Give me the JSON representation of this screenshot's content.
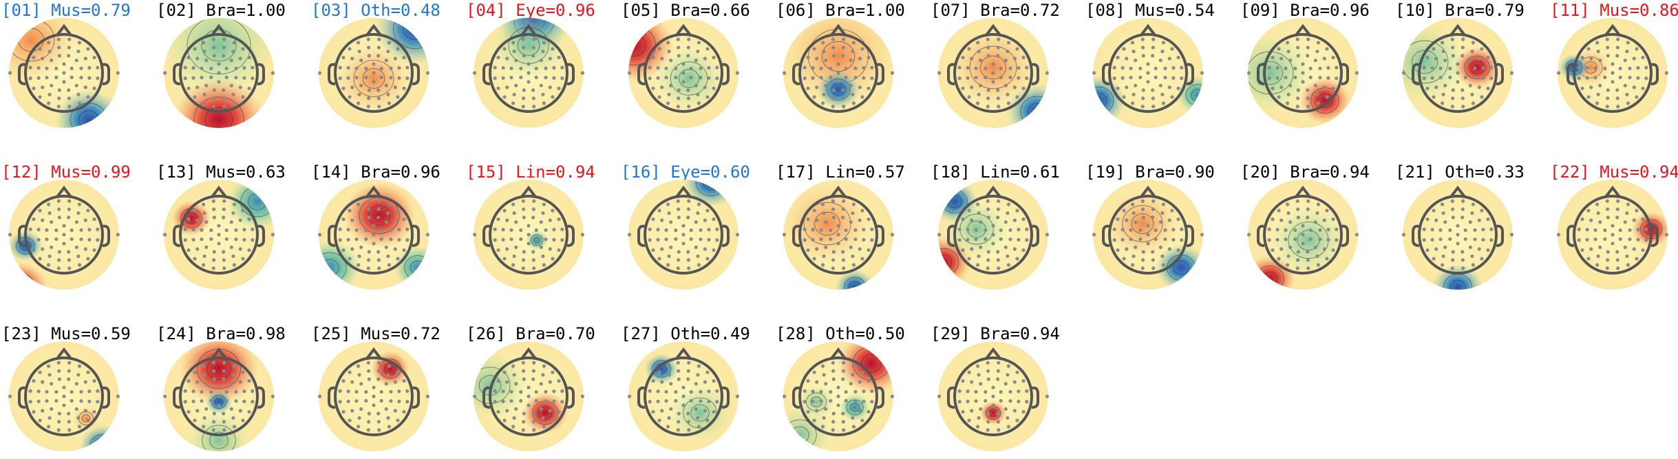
{
  "components": [
    {
      "title": "[01] Mus=0.79",
      "color": "#1f77d4"
    },
    {
      "title": "[02] Bra=1.00",
      "color": "#000000"
    },
    {
      "title": "[03] Oth=0.48",
      "color": "#1f77d4"
    },
    {
      "title": "[04] Eye=0.96",
      "color": "#e8141c"
    },
    {
      "title": "[05] Bra=0.66",
      "color": "#000000"
    },
    {
      "title": "[06] Bra=1.00",
      "color": "#000000"
    },
    {
      "title": "[07] Bra=0.72",
      "color": "#000000"
    },
    {
      "title": "[08] Mus=0.54",
      "color": "#000000"
    },
    {
      "title": "[09] Bra=0.96",
      "color": "#000000"
    },
    {
      "title": "[10] Bra=0.79",
      "color": "#000000"
    },
    {
      "title": "[11] Mus=0.86",
      "color": "#e8141c"
    },
    {
      "title": "[12] Mus=0.99",
      "color": "#e8141c"
    },
    {
      "title": "[13] Mus=0.63",
      "color": "#000000"
    },
    {
      "title": "[14] Bra=0.96",
      "color": "#000000"
    },
    {
      "title": "[15] Lin=0.94",
      "color": "#e8141c"
    },
    {
      "title": "[16] Eye=0.60",
      "color": "#1f77d4"
    },
    {
      "title": "[17] Lin=0.57",
      "color": "#000000"
    },
    {
      "title": "[18] Lin=0.61",
      "color": "#000000"
    },
    {
      "title": "[19] Bra=0.90",
      "color": "#000000"
    },
    {
      "title": "[20] Bra=0.94",
      "color": "#000000"
    },
    {
      "title": "[21] Oth=0.33",
      "color": "#000000"
    },
    {
      "title": "[22] Mus=0.94",
      "color": "#e8141c"
    },
    {
      "title": "[23] Mus=0.59",
      "color": "#000000"
    },
    {
      "title": "[24] Bra=0.98",
      "color": "#000000"
    },
    {
      "title": "[25] Mus=0.72",
      "color": "#000000"
    },
    {
      "title": "[26] Bra=0.70",
      "color": "#000000"
    },
    {
      "title": "[27] Oth=0.49",
      "color": "#000000"
    },
    {
      "title": "[28] Oth=0.50",
      "color": "#000000"
    },
    {
      "title": "[29] Bra=0.94",
      "color": "#000000"
    }
  ]
}
